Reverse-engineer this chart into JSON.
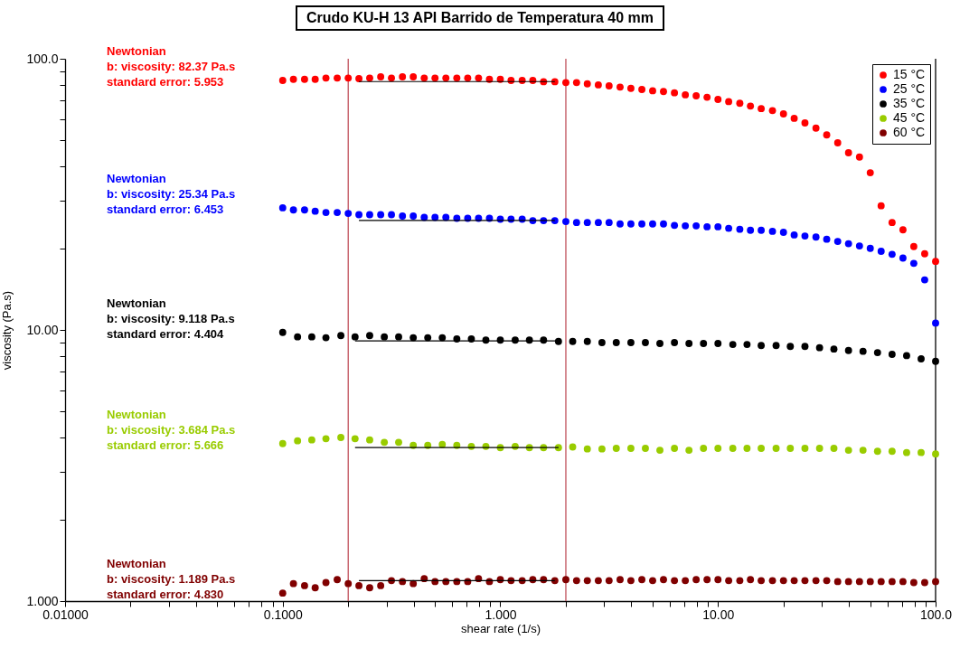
{
  "chart_data": {
    "type": "scatter",
    "title": "Crudo KU-H 13 API Barrido de Temperatura 40 mm",
    "xlabel": "shear rate (1/s)",
    "ylabel": "viscosity (Pa.s)",
    "log": "xy",
    "marker": "circle",
    "legend": "top right",
    "grid": false,
    "xlim": [
      0.01,
      100
    ],
    "ylim": [
      1,
      100
    ],
    "xticks": [
      {
        "value": 0.01,
        "label": "0.01000"
      },
      {
        "value": 0.02,
        "label": null
      },
      {
        "value": 0.03,
        "label": null
      },
      {
        "value": 0.04,
        "label": null
      },
      {
        "value": 0.05,
        "label": null
      },
      {
        "value": 0.06,
        "label": null
      },
      {
        "value": 0.07,
        "label": null
      },
      {
        "value": 0.08,
        "label": null
      },
      {
        "value": 0.09,
        "label": null
      },
      {
        "value": 0.1,
        "label": "0.1000"
      },
      {
        "value": 0.2,
        "label": null
      },
      {
        "value": 0.3,
        "label": null
      },
      {
        "value": 0.4,
        "label": null
      },
      {
        "value": 0.5,
        "label": null
      },
      {
        "value": 0.6,
        "label": null
      },
      {
        "value": 0.7,
        "label": null
      },
      {
        "value": 0.8,
        "label": null
      },
      {
        "value": 0.9,
        "label": null
      },
      {
        "value": 1,
        "label": "1.000"
      },
      {
        "value": 2,
        "label": null
      },
      {
        "value": 3,
        "label": null
      },
      {
        "value": 4,
        "label": null
      },
      {
        "value": 5,
        "label": null
      },
      {
        "value": 6,
        "label": null
      },
      {
        "value": 7,
        "label": null
      },
      {
        "value": 8,
        "label": null
      },
      {
        "value": 9,
        "label": null
      },
      {
        "value": 10,
        "label": "10.00"
      },
      {
        "value": 20,
        "label": null
      },
      {
        "value": 30,
        "label": null
      },
      {
        "value": 40,
        "label": null
      },
      {
        "value": 50,
        "label": null
      },
      {
        "value": 60,
        "label": null
      },
      {
        "value": 70,
        "label": null
      },
      {
        "value": 80,
        "label": null
      },
      {
        "value": 90,
        "label": null
      },
      {
        "value": 100,
        "label": "100.0"
      }
    ],
    "yticks": [
      {
        "value": 1,
        "label": "1.000"
      },
      {
        "value": 2,
        "label": null
      },
      {
        "value": 3,
        "label": null
      },
      {
        "value": 4,
        "label": null
      },
      {
        "value": 5,
        "label": null
      },
      {
        "value": 6,
        "label": null
      },
      {
        "value": 7,
        "label": null
      },
      {
        "value": 8,
        "label": null
      },
      {
        "value": 9,
        "label": null
      },
      {
        "value": 10,
        "label": "10.00"
      },
      {
        "value": 20,
        "label": null
      },
      {
        "value": 30,
        "label": null
      },
      {
        "value": 40,
        "label": null
      },
      {
        "value": 50,
        "label": null
      },
      {
        "value": 60,
        "label": null
      },
      {
        "value": 70,
        "label": null
      },
      {
        "value": 80,
        "label": null
      },
      {
        "value": 90,
        "label": null
      },
      {
        "value": 100,
        "label": "100.0"
      }
    ],
    "series": [
      {
        "name": "15 °C",
        "color": "#ff0000",
        "x": [
          0.1,
          0.112,
          0.126,
          0.141,
          0.158,
          0.178,
          0.2,
          0.224,
          0.251,
          0.282,
          0.316,
          0.355,
          0.398,
          0.447,
          0.501,
          0.562,
          0.631,
          0.708,
          0.794,
          0.891,
          1,
          1.12,
          1.26,
          1.41,
          1.58,
          1.78,
          2,
          2.24,
          2.51,
          2.82,
          3.16,
          3.55,
          3.98,
          4.47,
          5.01,
          5.62,
          6.31,
          7.08,
          7.94,
          8.91,
          10,
          11.2,
          12.6,
          14.1,
          15.8,
          17.8,
          20,
          22.4,
          25.1,
          28.2,
          31.6,
          35.5,
          39.8,
          44.7,
          50.1,
          56.2,
          63.1,
          70.8,
          79.4,
          89.1,
          100
        ],
        "values": [
          83.2,
          84.0,
          84.0,
          84.0,
          84.9,
          84.9,
          84.9,
          84.5,
          84.9,
          85.8,
          84.9,
          85.8,
          85.8,
          84.9,
          84.9,
          84.9,
          84.9,
          84.9,
          84.9,
          84.0,
          84.0,
          83.2,
          83.2,
          83.2,
          82.3,
          82.3,
          81.7,
          81.7,
          80.8,
          80.1,
          79.4,
          78.6,
          77.8,
          77.0,
          76.2,
          75.7,
          74.9,
          73.6,
          73.0,
          72.1,
          70.8,
          69.5,
          68.5,
          66.9,
          65.5,
          64.4,
          62.6,
          60.3,
          58.0,
          55.5,
          52.4,
          49.0,
          45.0,
          43.4,
          38.0,
          28.7,
          24.9,
          23.4,
          20.3,
          19.1,
          17.9
        ]
      },
      {
        "name": "25 °C",
        "color": "#0000ff",
        "x": [
          0.1,
          0.112,
          0.126,
          0.141,
          0.158,
          0.178,
          0.2,
          0.224,
          0.251,
          0.282,
          0.316,
          0.355,
          0.398,
          0.447,
          0.501,
          0.562,
          0.631,
          0.708,
          0.794,
          0.891,
          1,
          1.12,
          1.26,
          1.41,
          1.58,
          1.78,
          2,
          2.24,
          2.51,
          2.82,
          3.16,
          3.55,
          3.98,
          4.47,
          5.01,
          5.62,
          6.31,
          7.08,
          7.94,
          8.91,
          10,
          11.2,
          12.6,
          14.1,
          15.8,
          17.8,
          20,
          22.4,
          25.1,
          28.2,
          31.6,
          35.5,
          39.8,
          44.7,
          50.1,
          56.2,
          63.1,
          70.8,
          79.4,
          89.1,
          100
        ],
        "values": [
          28.2,
          27.7,
          27.7,
          27.4,
          27.1,
          27.1,
          26.9,
          26.6,
          26.6,
          26.6,
          26.6,
          26.3,
          26.3,
          26.0,
          26.0,
          26.0,
          25.8,
          25.8,
          25.8,
          25.8,
          25.6,
          25.6,
          25.6,
          25.3,
          25.3,
          25.3,
          25.1,
          24.9,
          24.9,
          24.9,
          24.9,
          24.6,
          24.6,
          24.6,
          24.6,
          24.6,
          24.3,
          24.2,
          24.2,
          24.0,
          24.0,
          23.7,
          23.5,
          23.3,
          23.3,
          23.1,
          22.9,
          22.4,
          22.2,
          22.0,
          21.6,
          21.2,
          20.8,
          20.4,
          20.0,
          19.5,
          19.0,
          18.4,
          17.6,
          15.3,
          10.6
        ]
      },
      {
        "name": "35 °C",
        "color": "#000000",
        "x": [
          0.1,
          0.117,
          0.136,
          0.158,
          0.185,
          0.215,
          0.251,
          0.293,
          0.341,
          0.398,
          0.464,
          0.541,
          0.631,
          0.736,
          0.858,
          1,
          1.17,
          1.36,
          1.58,
          1.85,
          2.15,
          2.51,
          2.93,
          3.41,
          3.98,
          4.64,
          5.41,
          6.31,
          7.36,
          8.58,
          10,
          11.7,
          13.6,
          15.8,
          18.5,
          21.5,
          25.1,
          29.3,
          34.1,
          39.8,
          46.4,
          54.1,
          63.1,
          73.6,
          85.8,
          100
        ],
        "values": [
          9.79,
          9.43,
          9.43,
          9.36,
          9.53,
          9.43,
          9.53,
          9.43,
          9.43,
          9.36,
          9.36,
          9.36,
          9.26,
          9.26,
          9.17,
          9.17,
          9.17,
          9.17,
          9.17,
          9.07,
          9.07,
          9.07,
          8.98,
          8.98,
          8.98,
          8.98,
          8.91,
          8.98,
          8.91,
          8.91,
          8.91,
          8.84,
          8.84,
          8.76,
          8.76,
          8.69,
          8.69,
          8.6,
          8.5,
          8.4,
          8.34,
          8.25,
          8.13,
          8.04,
          7.82,
          7.66
        ]
      },
      {
        "name": "45 °C",
        "color": "#99cc00",
        "x": [
          0.1,
          0.117,
          0.136,
          0.158,
          0.185,
          0.215,
          0.251,
          0.293,
          0.341,
          0.398,
          0.464,
          0.541,
          0.631,
          0.736,
          0.858,
          1,
          1.17,
          1.36,
          1.58,
          1.85,
          2.15,
          2.51,
          2.93,
          3.41,
          3.98,
          4.64,
          5.41,
          6.31,
          7.36,
          8.58,
          10,
          11.7,
          13.6,
          15.8,
          18.5,
          21.5,
          25.1,
          29.3,
          34.1,
          39.8,
          46.4,
          54.1,
          63.1,
          73.6,
          85.8,
          100
        ],
        "values": [
          3.81,
          3.9,
          3.93,
          3.97,
          4.01,
          3.97,
          3.93,
          3.85,
          3.85,
          3.75,
          3.75,
          3.78,
          3.75,
          3.72,
          3.72,
          3.68,
          3.72,
          3.68,
          3.68,
          3.68,
          3.7,
          3.64,
          3.64,
          3.66,
          3.66,
          3.66,
          3.6,
          3.66,
          3.6,
          3.66,
          3.66,
          3.66,
          3.66,
          3.66,
          3.66,
          3.66,
          3.66,
          3.66,
          3.66,
          3.6,
          3.6,
          3.57,
          3.57,
          3.53,
          3.53,
          3.49
        ]
      },
      {
        "name": "60 °C",
        "color": "#800000",
        "x": [
          0.1,
          0.112,
          0.126,
          0.141,
          0.158,
          0.178,
          0.2,
          0.224,
          0.251,
          0.282,
          0.316,
          0.355,
          0.398,
          0.447,
          0.501,
          0.562,
          0.631,
          0.708,
          0.794,
          0.891,
          1,
          1.12,
          1.26,
          1.41,
          1.58,
          1.78,
          2,
          2.24,
          2.51,
          2.82,
          3.16,
          3.55,
          3.98,
          4.47,
          5.01,
          5.62,
          6.31,
          7.08,
          7.94,
          8.91,
          10,
          11.2,
          12.6,
          14.1,
          15.8,
          17.8,
          20,
          22.4,
          25.1,
          28.2,
          31.6,
          35.5,
          39.8,
          44.7,
          50.1,
          56.2,
          63.1,
          70.8,
          79.4,
          89.1,
          100
        ],
        "values": [
          1.07,
          1.16,
          1.14,
          1.12,
          1.17,
          1.2,
          1.16,
          1.14,
          1.12,
          1.14,
          1.19,
          1.18,
          1.16,
          1.21,
          1.18,
          1.18,
          1.18,
          1.18,
          1.21,
          1.18,
          1.2,
          1.19,
          1.19,
          1.2,
          1.2,
          1.19,
          1.2,
          1.19,
          1.19,
          1.19,
          1.19,
          1.2,
          1.19,
          1.2,
          1.19,
          1.2,
          1.19,
          1.19,
          1.2,
          1.2,
          1.2,
          1.19,
          1.19,
          1.2,
          1.19,
          1.19,
          1.19,
          1.19,
          1.19,
          1.19,
          1.19,
          1.18,
          1.18,
          1.18,
          1.18,
          1.18,
          1.18,
          1.18,
          1.17,
          1.17,
          1.18
        ]
      },
      {
        "type": "line",
        "color": "#000000",
        "line_style": "solid",
        "marker": "none",
        "x": [
          0.224,
          1.78
        ],
        "values": [
          82.37,
          82.37
        ]
      },
      {
        "type": "line",
        "color": "#000000",
        "line_style": "solid",
        "marker": "none",
        "x": [
          0.224,
          1.78
        ],
        "values": [
          25.34,
          25.34
        ]
      },
      {
        "type": "line",
        "color": "#000000",
        "line_style": "solid",
        "marker": "none",
        "x": [
          0.215,
          1.85
        ],
        "values": [
          9.118,
          9.118
        ]
      },
      {
        "type": "line",
        "color": "#000000",
        "line_style": "solid",
        "marker": "none",
        "x": [
          0.215,
          1.85
        ],
        "values": [
          3.684,
          3.684
        ]
      },
      {
        "type": "line",
        "color": "#000000",
        "line_style": "solid",
        "marker": "none",
        "x": [
          0.224,
          1.78
        ],
        "values": [
          1.189,
          1.189
        ]
      }
    ],
    "ref_lines": [
      {
        "axis": "x",
        "value": 0.2,
        "color": "#c0505a"
      },
      {
        "axis": "x",
        "value": 2,
        "color": "#c0505a"
      },
      {
        "axis": "x",
        "value": 100,
        "color": "#000000"
      }
    ],
    "annotations": [
      "Newtonian\nb: viscosity: 82.37 Pa.s\nstandard error: 5.953",
      "Newtonian\nb: viscosity: 25.34 Pa.s\nstandard error: 6.453",
      "Newtonian\nb: viscosity: 9.118 Pa.s\nstandard error: 4.404",
      "Newtonian\nb: viscosity: 3.684 Pa.s\nstandard error: 5.666",
      "Newtonian\nb: viscosity: 1.189 Pa.s\nstandard error: 4.830"
    ]
  }
}
